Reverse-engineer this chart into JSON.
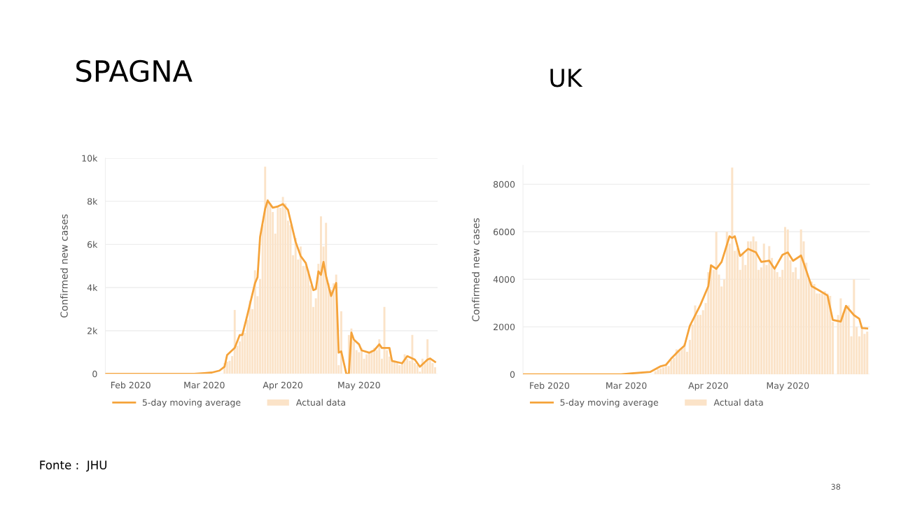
{
  "chart_data": [
    {
      "type": "bar",
      "title": "SPAGNA",
      "ylabel": "Confirmed new cases",
      "xlim": [
        "2020-01-22",
        "2020-06-01"
      ],
      "ylim": [
        0,
        10000
      ],
      "xticks": [
        {
          "value": "2020-02-01",
          "label": "Feb 2020"
        },
        {
          "value": "2020-03-01",
          "label": "Mar 2020"
        },
        {
          "value": "2020-04-01",
          "label": "Apr 2020"
        },
        {
          "value": "2020-05-01",
          "label": "May 2020"
        }
      ],
      "yticks": [
        0,
        {
          "value": 2000,
          "label": "2k"
        },
        {
          "value": 4000,
          "label": "4k"
        },
        {
          "value": 6000,
          "label": "6k"
        },
        {
          "value": 8000,
          "label": "8k"
        },
        {
          "value": 10000,
          "label": "10k"
        }
      ],
      "grid": "y",
      "legend": "bottom",
      "annotations": [
        "Fonte :  JHU"
      ],
      "series": [
        {
          "name": "Actual data",
          "color": "#fbe3c8",
          "x": [
            "2020-03-09",
            "2020-03-10",
            "2020-03-11",
            "2020-03-12",
            "2020-03-13",
            "2020-03-14",
            "2020-03-15",
            "2020-03-16",
            "2020-03-17",
            "2020-03-18",
            "2020-03-19",
            "2020-03-20",
            "2020-03-21",
            "2020-03-22",
            "2020-03-23",
            "2020-03-24",
            "2020-03-25",
            "2020-03-26",
            "2020-03-27",
            "2020-03-28",
            "2020-03-29",
            "2020-03-30",
            "2020-03-31",
            "2020-04-01",
            "2020-04-02",
            "2020-04-03",
            "2020-04-04",
            "2020-04-05",
            "2020-04-06",
            "2020-04-07",
            "2020-04-08",
            "2020-04-09",
            "2020-04-10",
            "2020-04-11",
            "2020-04-12",
            "2020-04-13",
            "2020-04-14",
            "2020-04-15",
            "2020-04-16",
            "2020-04-17",
            "2020-04-18",
            "2020-04-19",
            "2020-04-20",
            "2020-04-21",
            "2020-04-22",
            "2020-04-23",
            "2020-04-24",
            "2020-04-25",
            "2020-04-26",
            "2020-04-27",
            "2020-04-28",
            "2020-04-29",
            "2020-04-30",
            "2020-05-01",
            "2020-05-02",
            "2020-05-03",
            "2020-05-04",
            "2020-05-05",
            "2020-05-06",
            "2020-05-07",
            "2020-05-08",
            "2020-05-09",
            "2020-05-10",
            "2020-05-11",
            "2020-05-12",
            "2020-05-13",
            "2020-05-14",
            "2020-05-15",
            "2020-05-16",
            "2020-05-17",
            "2020-05-18",
            "2020-05-19",
            "2020-05-20",
            "2020-05-21",
            "2020-05-22",
            "2020-05-23",
            "2020-05-24",
            "2020-05-25",
            "2020-05-26",
            "2020-05-27",
            "2020-05-28",
            "2020-05-29",
            "2020-05-30",
            "2020-05-31"
          ],
          "values": [
            500,
            560,
            600,
            820,
            2960,
            1300,
            1500,
            1900,
            1900,
            2500,
            3400,
            3000,
            4800,
            3600,
            4400,
            6900,
            9600,
            8100,
            7900,
            7500,
            6500,
            7800,
            7700,
            8200,
            7900,
            7100,
            6900,
            5500,
            6300,
            5300,
            5900,
            5000,
            5000,
            4800,
            4100,
            3100,
            3500,
            5100,
            7300,
            5900,
            7000,
            4200,
            3900,
            4200,
            4600,
            400,
            2900,
            null,
            null,
            1800,
            2100,
            1500,
            1100,
            1000,
            1200,
            700,
            900,
            1000,
            1100,
            1200,
            1100,
            1600,
            700,
            3100,
            1100,
            800,
            600,
            600,
            500,
            400,
            500,
            900,
            700,
            600,
            1800,
            500,
            400,
            100,
            700,
            500,
            1600,
            700,
            500,
            300
          ]
        },
        {
          "name": "5-day moving average",
          "type": "line",
          "color": "#f5a33a",
          "x": [
            "2020-01-22",
            "2020-02-26",
            "2020-03-01",
            "2020-03-04",
            "2020-03-07",
            "2020-03-09",
            "2020-03-10",
            "2020-03-13",
            "2020-03-15",
            "2020-03-16",
            "2020-03-18",
            "2020-03-21",
            "2020-03-22",
            "2020-03-23",
            "2020-03-25",
            "2020-03-26",
            "2020-03-28",
            "2020-03-30",
            "2020-04-01",
            "2020-04-03",
            "2020-04-06",
            "2020-04-08",
            "2020-04-10",
            "2020-04-13",
            "2020-04-14",
            "2020-04-15",
            "2020-04-16",
            "2020-04-17",
            "2020-04-18",
            "2020-04-20",
            "2020-04-22",
            "2020-04-23",
            "2020-04-24",
            "2020-04-26",
            "2020-04-27",
            "2020-04-28",
            "2020-04-29",
            "2020-05-01",
            "2020-05-02",
            "2020-05-05",
            "2020-05-07",
            "2020-05-09",
            "2020-05-10",
            "2020-05-13",
            "2020-05-14",
            "2020-05-18",
            "2020-05-20",
            "2020-05-23",
            "2020-05-25",
            "2020-05-28",
            "2020-05-29",
            "2020-05-31"
          ],
          "values": [
            0,
            0,
            30,
            60,
            150,
            330,
            870,
            1200,
            1800,
            1800,
            2730,
            4200,
            4480,
            6340,
            7650,
            8030,
            7700,
            7760,
            7870,
            7600,
            6120,
            5460,
            5140,
            3880,
            3930,
            4750,
            4590,
            5190,
            4540,
            3610,
            4210,
            980,
            1040,
            0,
            0,
            1910,
            1580,
            1370,
            1090,
            980,
            1090,
            1370,
            1200,
            1200,
            600,
            490,
            820,
            660,
            330,
            660,
            710,
            550
          ]
        }
      ]
    },
    {
      "type": "bar",
      "title": "UK",
      "ylabel": "Confirmed new cases",
      "xlim": [
        "2020-01-22",
        "2020-06-01"
      ],
      "ylim": [
        0,
        8800
      ],
      "xticks": [
        {
          "value": "2020-02-01",
          "label": "Feb 2020"
        },
        {
          "value": "2020-03-01",
          "label": "Mar 2020"
        },
        {
          "value": "2020-04-01",
          "label": "Apr 2020"
        },
        {
          "value": "2020-05-01",
          "label": "May 2020"
        }
      ],
      "yticks": [
        0,
        2000,
        4000,
        6000,
        8000
      ],
      "grid": "y",
      "legend": "bottom",
      "annotations": [
        "38"
      ],
      "series": [
        {
          "name": "Actual data",
          "color": "#fbe3c8",
          "x": [
            "2020-03-12",
            "2020-03-13",
            "2020-03-14",
            "2020-03-15",
            "2020-03-16",
            "2020-03-17",
            "2020-03-18",
            "2020-03-19",
            "2020-03-20",
            "2020-03-21",
            "2020-03-22",
            "2020-03-23",
            "2020-03-24",
            "2020-03-25",
            "2020-03-26",
            "2020-03-27",
            "2020-03-28",
            "2020-03-29",
            "2020-03-30",
            "2020-03-31",
            "2020-04-01",
            "2020-04-02",
            "2020-04-03",
            "2020-04-04",
            "2020-04-05",
            "2020-04-06",
            "2020-04-07",
            "2020-04-08",
            "2020-04-09",
            "2020-04-10",
            "2020-04-11",
            "2020-04-12",
            "2020-04-13",
            "2020-04-14",
            "2020-04-15",
            "2020-04-16",
            "2020-04-17",
            "2020-04-18",
            "2020-04-19",
            "2020-04-20",
            "2020-04-21",
            "2020-04-22",
            "2020-04-23",
            "2020-04-24",
            "2020-04-25",
            "2020-04-26",
            "2020-04-27",
            "2020-04-28",
            "2020-04-29",
            "2020-04-30",
            "2020-05-01",
            "2020-05-02",
            "2020-05-03",
            "2020-05-04",
            "2020-05-05",
            "2020-05-06",
            "2020-05-07",
            "2020-05-08",
            "2020-05-09",
            "2020-05-10",
            "2020-05-11",
            "2020-05-12",
            "2020-05-13",
            "2020-05-14",
            "2020-05-15",
            "2020-05-16",
            "2020-05-17",
            "2020-05-18",
            "2020-05-19",
            "2020-05-20",
            "2020-05-21",
            "2020-05-22",
            "2020-05-23",
            "2020-05-24",
            "2020-05-25",
            "2020-05-26",
            "2020-05-27",
            "2020-05-28",
            "2020-05-29",
            "2020-05-30",
            "2020-05-31"
          ],
          "values": [
            130,
            210,
            250,
            300,
            410,
            350,
            600,
            700,
            1050,
            1000,
            1100,
            1300,
            950,
            1450,
            2100,
            2900,
            2500,
            2500,
            2700,
            3000,
            4300,
            4600,
            4400,
            6000,
            4200,
            3700,
            4000,
            6000,
            5500,
            8700,
            5200,
            5300,
            4400,
            5100,
            4600,
            5600,
            5600,
            5800,
            5600,
            4400,
            4500,
            5500,
            4600,
            5400,
            4900,
            4400,
            4300,
            4100,
            4400,
            6200,
            6100,
            4800,
            4300,
            4500,
            4000,
            6100,
            5600,
            4700,
            4000,
            3900,
            3800,
            3400,
            3400,
            3400,
            3500,
            3400,
            3300,
            2200,
            null,
            2500,
            3200,
            2600,
            2900,
            2900,
            1600,
            4000,
            2000,
            1600,
            2000,
            1700,
            1800
          ]
        },
        {
          "name": "5-day moving average",
          "type": "line",
          "color": "#f5a33a",
          "x": [
            "2020-01-22",
            "2020-02-28",
            "2020-03-03",
            "2020-03-10",
            "2020-03-14",
            "2020-03-16",
            "2020-03-18",
            "2020-03-21",
            "2020-03-23",
            "2020-03-25",
            "2020-03-29",
            "2020-04-01",
            "2020-04-02",
            "2020-04-04",
            "2020-04-06",
            "2020-04-09",
            "2020-04-10",
            "2020-04-11",
            "2020-04-13",
            "2020-04-16",
            "2020-04-19",
            "2020-04-21",
            "2020-04-24",
            "2020-04-26",
            "2020-04-29",
            "2020-05-01",
            "2020-05-03",
            "2020-05-06",
            "2020-05-07",
            "2020-05-10",
            "2020-05-13",
            "2020-05-16",
            "2020-05-18",
            "2020-05-21",
            "2020-05-23",
            "2020-05-26",
            "2020-05-28",
            "2020-05-29",
            "2020-05-31"
          ],
          "values": [
            0,
            0,
            40,
            100,
            340,
            400,
            670,
            1010,
            1210,
            2040,
            2920,
            3710,
            4590,
            4440,
            4730,
            5810,
            5740,
            5810,
            4980,
            5280,
            5130,
            4730,
            4780,
            4440,
            5030,
            5130,
            4780,
            5000,
            4690,
            3710,
            3520,
            3320,
            2290,
            2220,
            2880,
            2490,
            2340,
            1950,
            1930
          ]
        }
      ]
    }
  ]
}
